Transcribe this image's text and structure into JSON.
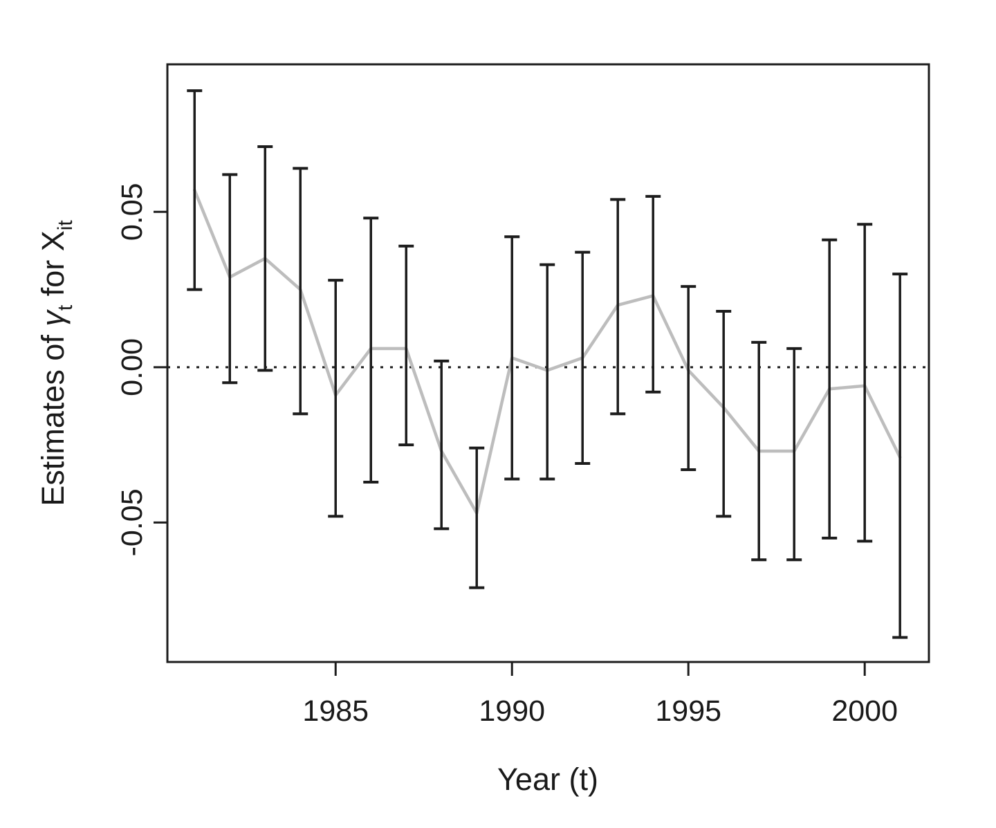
{
  "chart_data": {
    "type": "line",
    "title": "",
    "xlabel": "Year (t)",
    "ylabel": "Estimates of γt for Xit",
    "ylabel_parts": [
      {
        "text": "Estimates of  "
      },
      {
        "text": "γ",
        "italic": true
      },
      {
        "text": "t",
        "sub": true
      },
      {
        "text": "  for X"
      },
      {
        "text": "it",
        "sub": true
      }
    ],
    "x": [
      1981,
      1982,
      1983,
      1984,
      1985,
      1986,
      1987,
      1988,
      1989,
      1990,
      1991,
      1992,
      1993,
      1994,
      1995,
      1996,
      1997,
      1998,
      1999,
      2000,
      2001
    ],
    "series": [
      {
        "name": "estimate",
        "values": [
          0.057,
          0.029,
          0.035,
          0.025,
          -0.009,
          0.006,
          0.006,
          -0.027,
          -0.047,
          0.003,
          -0.001,
          0.003,
          0.02,
          0.023,
          -0.001,
          -0.013,
          -0.027,
          -0.027,
          -0.007,
          -0.006,
          -0.029
        ]
      }
    ],
    "error_low": [
      0.025,
      -0.005,
      -0.001,
      -0.015,
      -0.048,
      -0.037,
      -0.025,
      -0.052,
      -0.071,
      -0.036,
      -0.036,
      -0.031,
      -0.015,
      -0.008,
      -0.033,
      -0.048,
      -0.062,
      -0.062,
      -0.055,
      -0.056,
      -0.087
    ],
    "error_high": [
      0.089,
      0.062,
      0.071,
      0.064,
      0.028,
      0.048,
      0.039,
      0.002,
      -0.026,
      0.042,
      0.033,
      0.037,
      0.054,
      0.055,
      0.026,
      0.018,
      0.008,
      0.006,
      0.041,
      0.046,
      0.03
    ],
    "zero_line": 0,
    "xlim": [
      1980.23,
      2001.82
    ],
    "ylim": [
      -0.0949,
      0.0975
    ],
    "x_ticks": [
      {
        "label": "1985",
        "value": 1985
      },
      {
        "label": "1990",
        "value": 1990
      },
      {
        "label": "1995",
        "value": 1995
      },
      {
        "label": "2000",
        "value": 2000
      }
    ],
    "y_ticks": [
      {
        "label": "0.05",
        "value": 0.05
      },
      {
        "label": "0.00",
        "value": 0.0
      },
      {
        "label": "-0.05",
        "value": -0.05
      }
    ],
    "grid": false,
    "legend": null,
    "colors": {
      "background": "#ffffff",
      "axis": "#1c1c1c",
      "error_bar": "#1c1c1c",
      "estimate_line": "#bdbdbd",
      "zero_line": "#1c1c1c",
      "text": "#1a1a1a"
    }
  }
}
